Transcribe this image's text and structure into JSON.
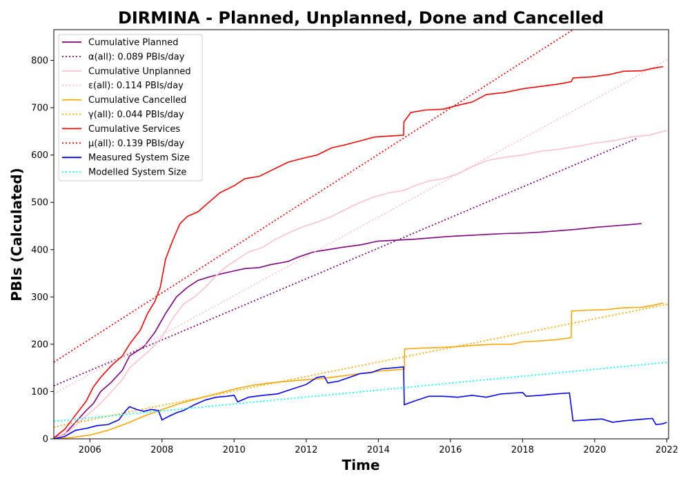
{
  "chart_data": {
    "type": "line",
    "title": "DIRMINA - Planned, Unplanned, Done  and Cancelled",
    "xlabel": "Time",
    "ylabel": "PBIs (Calculated)",
    "xlim": [
      2005.0,
      2022.05
    ],
    "ylim": [
      0,
      865
    ],
    "x_ticks": [
      2006,
      2008,
      2010,
      2012,
      2014,
      2016,
      2018,
      2020,
      2022
    ],
    "y_ticks": [
      0,
      100,
      200,
      300,
      400,
      500,
      600,
      700,
      800
    ],
    "legend_position": "top-left",
    "grid": false,
    "series": [
      {
        "name": "Cumulative Planned",
        "color": "#800080",
        "style": "solid",
        "points": [
          [
            2005.0,
            2
          ],
          [
            2005.3,
            10
          ],
          [
            2005.6,
            35
          ],
          [
            2005.9,
            60
          ],
          [
            2006.1,
            75
          ],
          [
            2006.3,
            100
          ],
          [
            2006.6,
            120
          ],
          [
            2006.9,
            145
          ],
          [
            2007.1,
            175
          ],
          [
            2007.5,
            195
          ],
          [
            2007.8,
            225
          ],
          [
            2008.1,
            265
          ],
          [
            2008.4,
            300
          ],
          [
            2008.7,
            320
          ],
          [
            2009.0,
            335
          ],
          [
            2009.3,
            342
          ],
          [
            2009.6,
            348
          ],
          [
            2010.0,
            355
          ],
          [
            2010.3,
            360
          ],
          [
            2010.7,
            362
          ],
          [
            2011.0,
            368
          ],
          [
            2011.5,
            375
          ],
          [
            2011.8,
            385
          ],
          [
            2012.2,
            395
          ],
          [
            2012.6,
            400
          ],
          [
            2013.0,
            405
          ],
          [
            2013.5,
            410
          ],
          [
            2014.0,
            418
          ],
          [
            2014.5,
            420
          ],
          [
            2015.0,
            422
          ],
          [
            2015.5,
            425
          ],
          [
            2016.0,
            428
          ],
          [
            2016.5,
            430
          ],
          [
            2017.0,
            432
          ],
          [
            2017.5,
            434
          ],
          [
            2018.0,
            435
          ],
          [
            2018.5,
            437
          ],
          [
            2019.0,
            440
          ],
          [
            2019.5,
            443
          ],
          [
            2020.0,
            447
          ],
          [
            2020.5,
            450
          ],
          [
            2021.0,
            453
          ],
          [
            2021.3,
            455
          ]
        ]
      },
      {
        "name": "α(all): 0.089 PBIs/day",
        "color": "#800080",
        "style": "dotted",
        "points": [
          [
            2005.0,
            112
          ],
          [
            2021.2,
            636
          ]
        ]
      },
      {
        "name": "Cumulative Unplanned",
        "color": "#ffc0cb",
        "style": "solid",
        "points": [
          [
            2005.0,
            0
          ],
          [
            2005.4,
            15
          ],
          [
            2005.7,
            35
          ],
          [
            2006.0,
            55
          ],
          [
            2006.3,
            75
          ],
          [
            2006.6,
            100
          ],
          [
            2006.9,
            125
          ],
          [
            2007.1,
            150
          ],
          [
            2007.4,
            170
          ],
          [
            2007.7,
            190
          ],
          [
            2008.0,
            215
          ],
          [
            2008.3,
            255
          ],
          [
            2008.6,
            285
          ],
          [
            2008.9,
            300
          ],
          [
            2009.2,
            320
          ],
          [
            2009.5,
            345
          ],
          [
            2009.8,
            365
          ],
          [
            2010.1,
            380
          ],
          [
            2010.4,
            395
          ],
          [
            2010.8,
            405
          ],
          [
            2011.1,
            420
          ],
          [
            2011.5,
            435
          ],
          [
            2011.9,
            448
          ],
          [
            2012.3,
            458
          ],
          [
            2012.7,
            470
          ],
          [
            2013.1,
            485
          ],
          [
            2013.5,
            500
          ],
          [
            2013.9,
            512
          ],
          [
            2014.3,
            520
          ],
          [
            2014.7,
            525
          ],
          [
            2015.0,
            535
          ],
          [
            2015.4,
            545
          ],
          [
            2015.8,
            550
          ],
          [
            2016.2,
            560
          ],
          [
            2016.6,
            575
          ],
          [
            2017.0,
            588
          ],
          [
            2017.5,
            595
          ],
          [
            2018.0,
            600
          ],
          [
            2018.5,
            608
          ],
          [
            2019.0,
            612
          ],
          [
            2019.5,
            618
          ],
          [
            2020.0,
            625
          ],
          [
            2020.5,
            630
          ],
          [
            2021.0,
            638
          ],
          [
            2021.5,
            642
          ],
          [
            2022.0,
            652
          ]
        ]
      },
      {
        "name": "ε(all): 0.114 PBIs/day",
        "color": "#ffc0cb",
        "style": "dotted",
        "points": [
          [
            2005.0,
            95
          ],
          [
            2022.05,
            803
          ]
        ]
      },
      {
        "name": "Cumulative Cancelled",
        "color": "#ffa500",
        "style": "solid",
        "points": [
          [
            2005.0,
            0
          ],
          [
            2005.5,
            3
          ],
          [
            2006.0,
            8
          ],
          [
            2006.5,
            18
          ],
          [
            2007.0,
            32
          ],
          [
            2007.5,
            48
          ],
          [
            2008.0,
            62
          ],
          [
            2008.5,
            75
          ],
          [
            2009.0,
            85
          ],
          [
            2009.5,
            95
          ],
          [
            2010.0,
            105
          ],
          [
            2010.5,
            113
          ],
          [
            2011.0,
            118
          ],
          [
            2011.5,
            122
          ],
          [
            2012.0,
            125
          ],
          [
            2012.5,
            128
          ],
          [
            2013.0,
            133
          ],
          [
            2013.5,
            138
          ],
          [
            2014.0,
            143
          ],
          [
            2014.5,
            146
          ],
          [
            2014.72,
            147
          ],
          [
            2014.73,
            190
          ],
          [
            2015.2,
            192
          ],
          [
            2015.7,
            193
          ],
          [
            2016.2,
            195
          ],
          [
            2016.7,
            198
          ],
          [
            2017.2,
            200
          ],
          [
            2017.7,
            200
          ],
          [
            2018.0,
            205
          ],
          [
            2018.5,
            207
          ],
          [
            2019.0,
            210
          ],
          [
            2019.35,
            214
          ],
          [
            2019.36,
            270
          ],
          [
            2019.8,
            272
          ],
          [
            2020.3,
            273
          ],
          [
            2020.8,
            277
          ],
          [
            2021.3,
            278
          ],
          [
            2021.6,
            282
          ],
          [
            2021.9,
            287
          ]
        ]
      },
      {
        "name": "γ(all): 0.044 PBIs/day",
        "color": "#ffa500",
        "style": "dotted",
        "points": [
          [
            2005.0,
            25
          ],
          [
            2022.05,
            285
          ]
        ]
      },
      {
        "name": "Cumulative Services",
        "color": "#ff0000",
        "style": "solid",
        "points": [
          [
            2005.0,
            2
          ],
          [
            2005.3,
            20
          ],
          [
            2005.6,
            50
          ],
          [
            2005.9,
            80
          ],
          [
            2006.1,
            110
          ],
          [
            2006.3,
            130
          ],
          [
            2006.6,
            155
          ],
          [
            2006.9,
            175
          ],
          [
            2007.1,
            200
          ],
          [
            2007.4,
            230
          ],
          [
            2007.6,
            265
          ],
          [
            2007.8,
            290
          ],
          [
            2007.95,
            320
          ],
          [
            2008.1,
            380
          ],
          [
            2008.3,
            420
          ],
          [
            2008.5,
            455
          ],
          [
            2008.7,
            470
          ],
          [
            2009.0,
            480
          ],
          [
            2009.3,
            500
          ],
          [
            2009.6,
            520
          ],
          [
            2010.0,
            535
          ],
          [
            2010.3,
            550
          ],
          [
            2010.7,
            555
          ],
          [
            2011.1,
            570
          ],
          [
            2011.5,
            585
          ],
          [
            2011.9,
            593
          ],
          [
            2012.3,
            600
          ],
          [
            2012.7,
            615
          ],
          [
            2013.1,
            622
          ],
          [
            2013.5,
            630
          ],
          [
            2013.9,
            638
          ],
          [
            2014.3,
            640
          ],
          [
            2014.7,
            642
          ],
          [
            2014.71,
            670
          ],
          [
            2014.9,
            690
          ],
          [
            2015.3,
            695
          ],
          [
            2015.8,
            697
          ],
          [
            2016.2,
            705
          ],
          [
            2016.6,
            712
          ],
          [
            2017.0,
            728
          ],
          [
            2017.5,
            732
          ],
          [
            2018.0,
            740
          ],
          [
            2018.5,
            745
          ],
          [
            2019.0,
            750
          ],
          [
            2019.35,
            755
          ],
          [
            2019.4,
            763
          ],
          [
            2019.9,
            765
          ],
          [
            2020.4,
            770
          ],
          [
            2020.8,
            777
          ],
          [
            2021.3,
            778
          ],
          [
            2021.6,
            783
          ],
          [
            2021.9,
            787
          ]
        ]
      },
      {
        "name": "μ(all): 0.139 PBIs/day",
        "color": "#ff0000",
        "style": "dotted",
        "points": [
          [
            2005.0,
            162
          ],
          [
            2019.4,
            865
          ]
        ]
      },
      {
        "name": "Measured System Size",
        "color": "#0000ff",
        "style": "solid",
        "points": [
          [
            2005.0,
            0
          ],
          [
            2005.3,
            5
          ],
          [
            2005.6,
            18
          ],
          [
            2005.9,
            22
          ],
          [
            2006.2,
            28
          ],
          [
            2006.5,
            30
          ],
          [
            2006.8,
            40
          ],
          [
            2007.0,
            60
          ],
          [
            2007.1,
            68
          ],
          [
            2007.3,
            62
          ],
          [
            2007.5,
            58
          ],
          [
            2007.7,
            62
          ],
          [
            2007.9,
            60
          ],
          [
            2008.0,
            40
          ],
          [
            2008.2,
            48
          ],
          [
            2008.4,
            55
          ],
          [
            2008.6,
            60
          ],
          [
            2008.9,
            72
          ],
          [
            2009.2,
            82
          ],
          [
            2009.5,
            88
          ],
          [
            2009.8,
            90
          ],
          [
            2010.0,
            92
          ],
          [
            2010.1,
            78
          ],
          [
            2010.4,
            88
          ],
          [
            2010.8,
            92
          ],
          [
            2011.2,
            95
          ],
          [
            2011.6,
            105
          ],
          [
            2012.0,
            115
          ],
          [
            2012.3,
            130
          ],
          [
            2012.5,
            132
          ],
          [
            2012.6,
            118
          ],
          [
            2012.9,
            122
          ],
          [
            2013.2,
            130
          ],
          [
            2013.5,
            138
          ],
          [
            2013.8,
            140
          ],
          [
            2014.1,
            148
          ],
          [
            2014.4,
            150
          ],
          [
            2014.7,
            152
          ],
          [
            2014.72,
            72
          ],
          [
            2015.0,
            80
          ],
          [
            2015.4,
            90
          ],
          [
            2015.8,
            90
          ],
          [
            2016.2,
            88
          ],
          [
            2016.6,
            92
          ],
          [
            2017.0,
            88
          ],
          [
            2017.4,
            95
          ],
          [
            2017.8,
            97
          ],
          [
            2018.0,
            98
          ],
          [
            2018.1,
            90
          ],
          [
            2018.5,
            92
          ],
          [
            2018.9,
            95
          ],
          [
            2019.3,
            97
          ],
          [
            2019.4,
            38
          ],
          [
            2019.8,
            40
          ],
          [
            2020.2,
            42
          ],
          [
            2020.5,
            35
          ],
          [
            2020.8,
            38
          ],
          [
            2021.1,
            40
          ],
          [
            2021.4,
            42
          ],
          [
            2021.6,
            43
          ],
          [
            2021.7,
            30
          ],
          [
            2021.9,
            32
          ],
          [
            2022.0,
            35
          ]
        ]
      },
      {
        "name": "Modelled System Size",
        "color": "#00ffff",
        "style": "dotted",
        "points": [
          [
            2005.0,
            37
          ],
          [
            2022.05,
            162
          ]
        ]
      }
    ]
  }
}
